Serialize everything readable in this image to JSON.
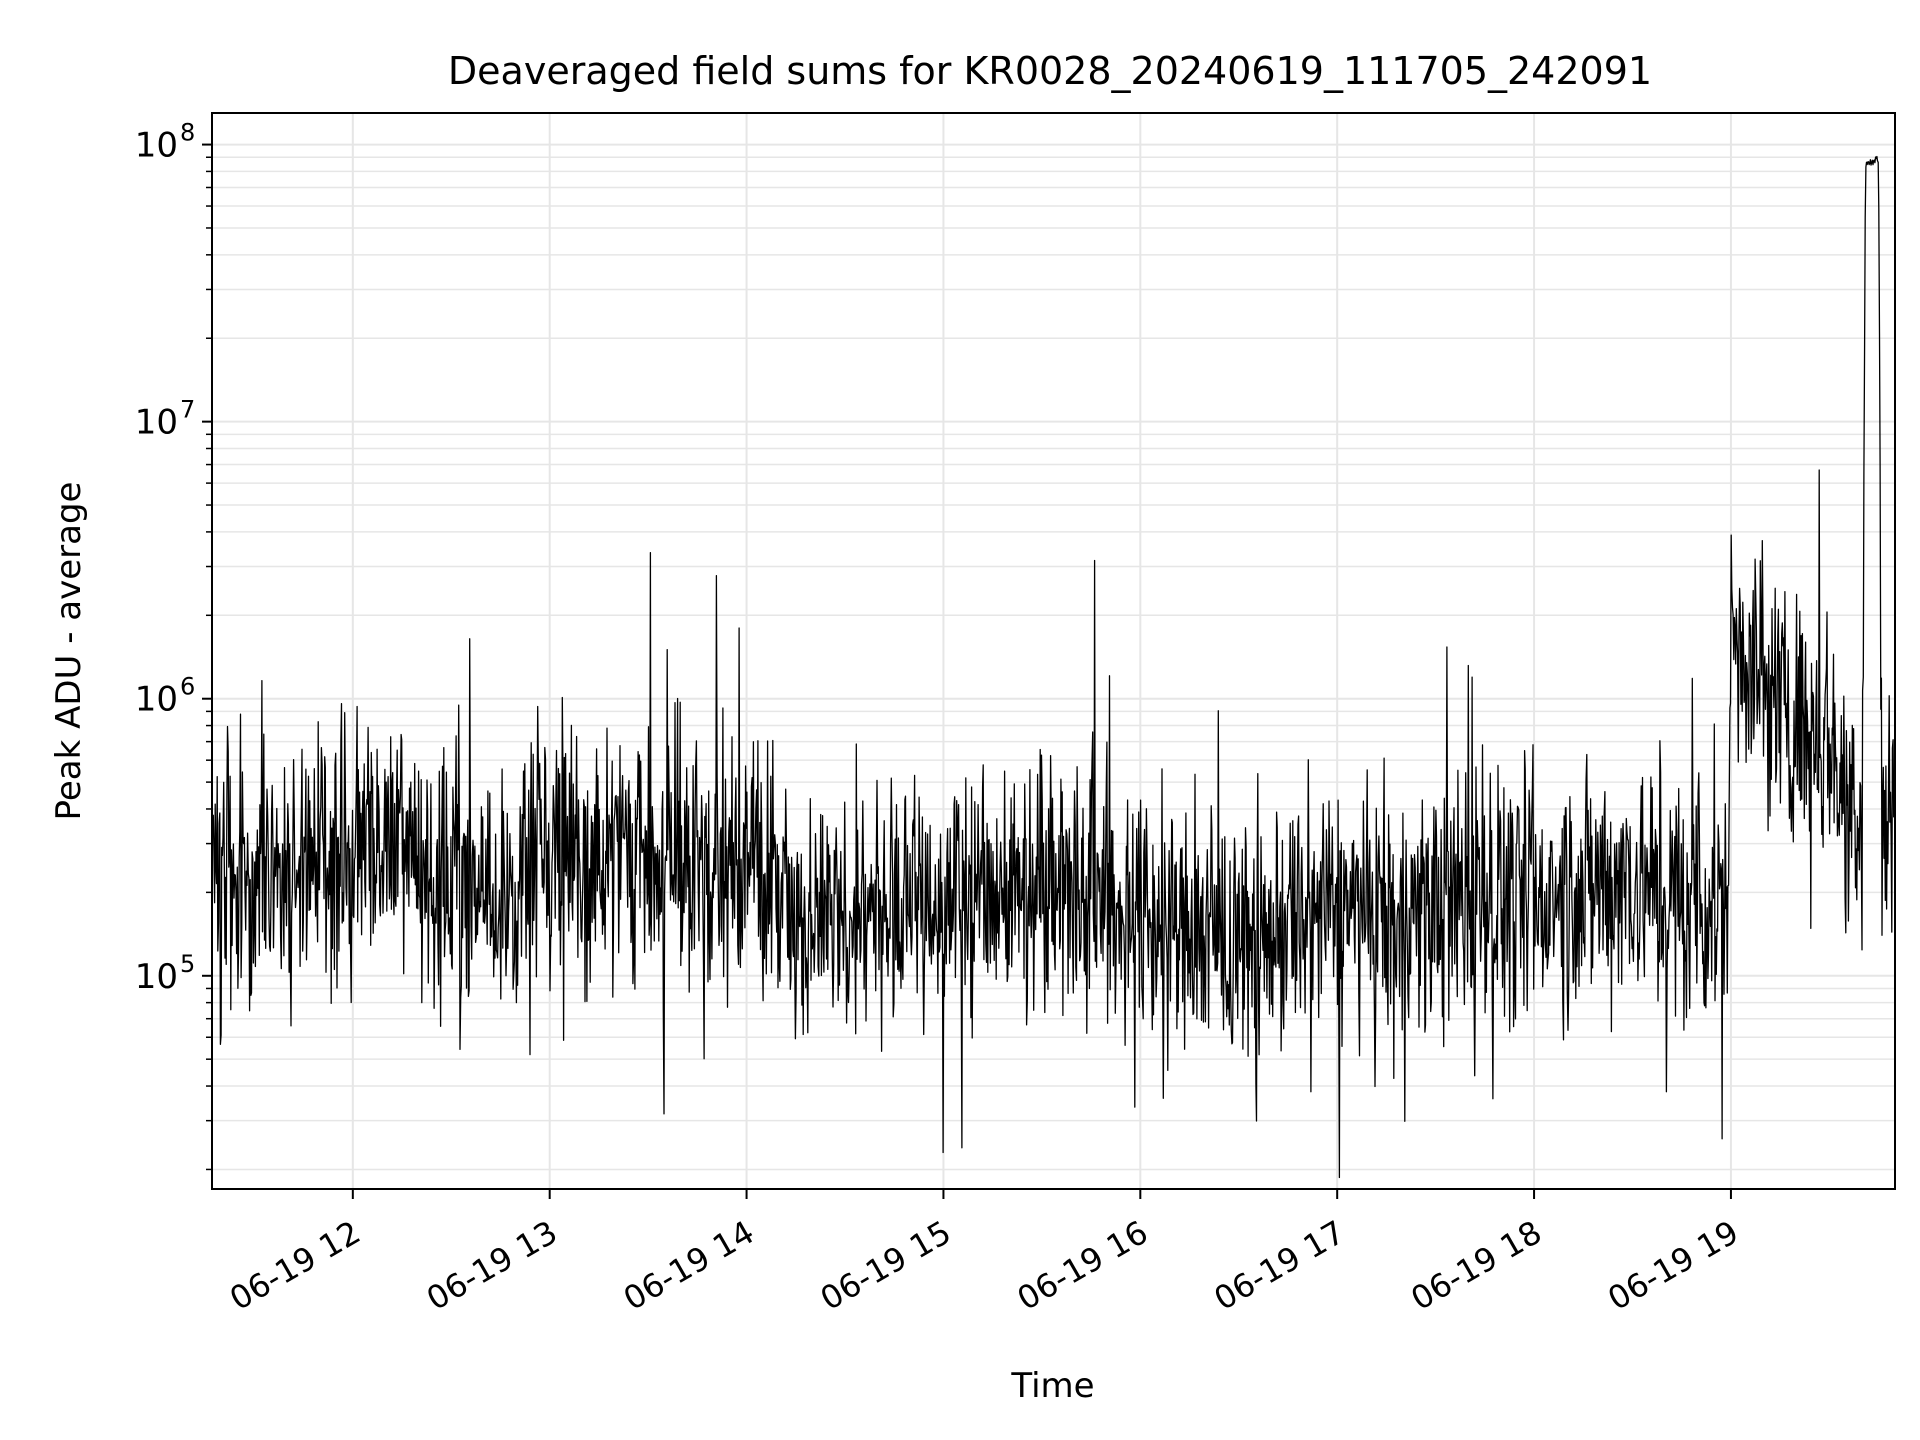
{
  "chart_data": {
    "type": "line",
    "title": "Deaveraged field sums for KR0028_20240619_111705_242091",
    "xlabel": "Time",
    "ylabel": "Peak ADU - average",
    "x_range": [
      "2024-06-19T11:17:05",
      "2024-06-19T19:50:00"
    ],
    "y_scale": "log",
    "ylim": [
      17000,
      130000000
    ],
    "x_ticks": [
      {
        "value": "2024-06-19T12:00:00",
        "label": "06-19 12"
      },
      {
        "value": "2024-06-19T13:00:00",
        "label": "06-19 13"
      },
      {
        "value": "2024-06-19T14:00:00",
        "label": "06-19 14"
      },
      {
        "value": "2024-06-19T15:00:00",
        "label": "06-19 15"
      },
      {
        "value": "2024-06-19T16:00:00",
        "label": "06-19 16"
      },
      {
        "value": "2024-06-19T17:00:00",
        "label": "06-19 17"
      },
      {
        "value": "2024-06-19T18:00:00",
        "label": "06-19 18"
      },
      {
        "value": "2024-06-19T19:00:00",
        "label": "06-19 19"
      }
    ],
    "y_ticks": [
      {
        "value": 100000,
        "mantissa": "10",
        "exponent": "5"
      },
      {
        "value": 1000000,
        "mantissa": "10",
        "exponent": "6"
      },
      {
        "value": 10000000,
        "mantissa": "10",
        "exponent": "7"
      },
      {
        "value": 100000000,
        "mantissa": "10",
        "exponent": "8"
      }
    ],
    "grid": true,
    "line_color": "#000000",
    "grid_color": "#e6e6e6",
    "series": [
      {
        "x": [
          "2024-06-19T11:17:05",
          "2024-06-19T11:30:00",
          "2024-06-19T11:45:00",
          "2024-06-19T12:00:00",
          "2024-06-19T12:15:00",
          "2024-06-19T12:30:00",
          "2024-06-19T12:45:00",
          "2024-06-19T13:00:00",
          "2024-06-19T13:15:00",
          "2024-06-19T13:30:00",
          "2024-06-19T13:45:00",
          "2024-06-19T14:00:00",
          "2024-06-19T14:15:00",
          "2024-06-19T14:30:00",
          "2024-06-19T14:45:00",
          "2024-06-19T15:00:00",
          "2024-06-19T15:15:00",
          "2024-06-19T15:30:00",
          "2024-06-19T15:45:00",
          "2024-06-19T16:00:00",
          "2024-06-19T16:15:00",
          "2024-06-19T16:30:00",
          "2024-06-19T16:45:00",
          "2024-06-19T17:00:00",
          "2024-06-19T17:15:00",
          "2024-06-19T17:30:00",
          "2024-06-19T17:45:00",
          "2024-06-19T18:00:00",
          "2024-06-19T18:15:00",
          "2024-06-19T18:30:00",
          "2024-06-19T18:45:00",
          "2024-06-19T18:59:00",
          "2024-06-19T19:00:00",
          "2024-06-19T19:15:00",
          "2024-06-19T19:30:00",
          "2024-06-19T19:40:00",
          "2024-06-19T19:41:00",
          "2024-06-19T19:45:00",
          "2024-06-19T19:46:00",
          "2024-06-19T19:50:00"
        ],
        "y": [
          200000,
          250000,
          220000,
          300000,
          280000,
          200000,
          180000,
          350000,
          250000,
          280000,
          220000,
          300000,
          170000,
          150000,
          180000,
          190000,
          200000,
          240000,
          210000,
          160000,
          140000,
          130000,
          150000,
          170000,
          160000,
          180000,
          200000,
          190000,
          210000,
          230000,
          180000,
          190000,
          1800000,
          1000000,
          700000,
          380000,
          85000000,
          88000000,
          350000,
          500000
        ]
      }
    ]
  }
}
